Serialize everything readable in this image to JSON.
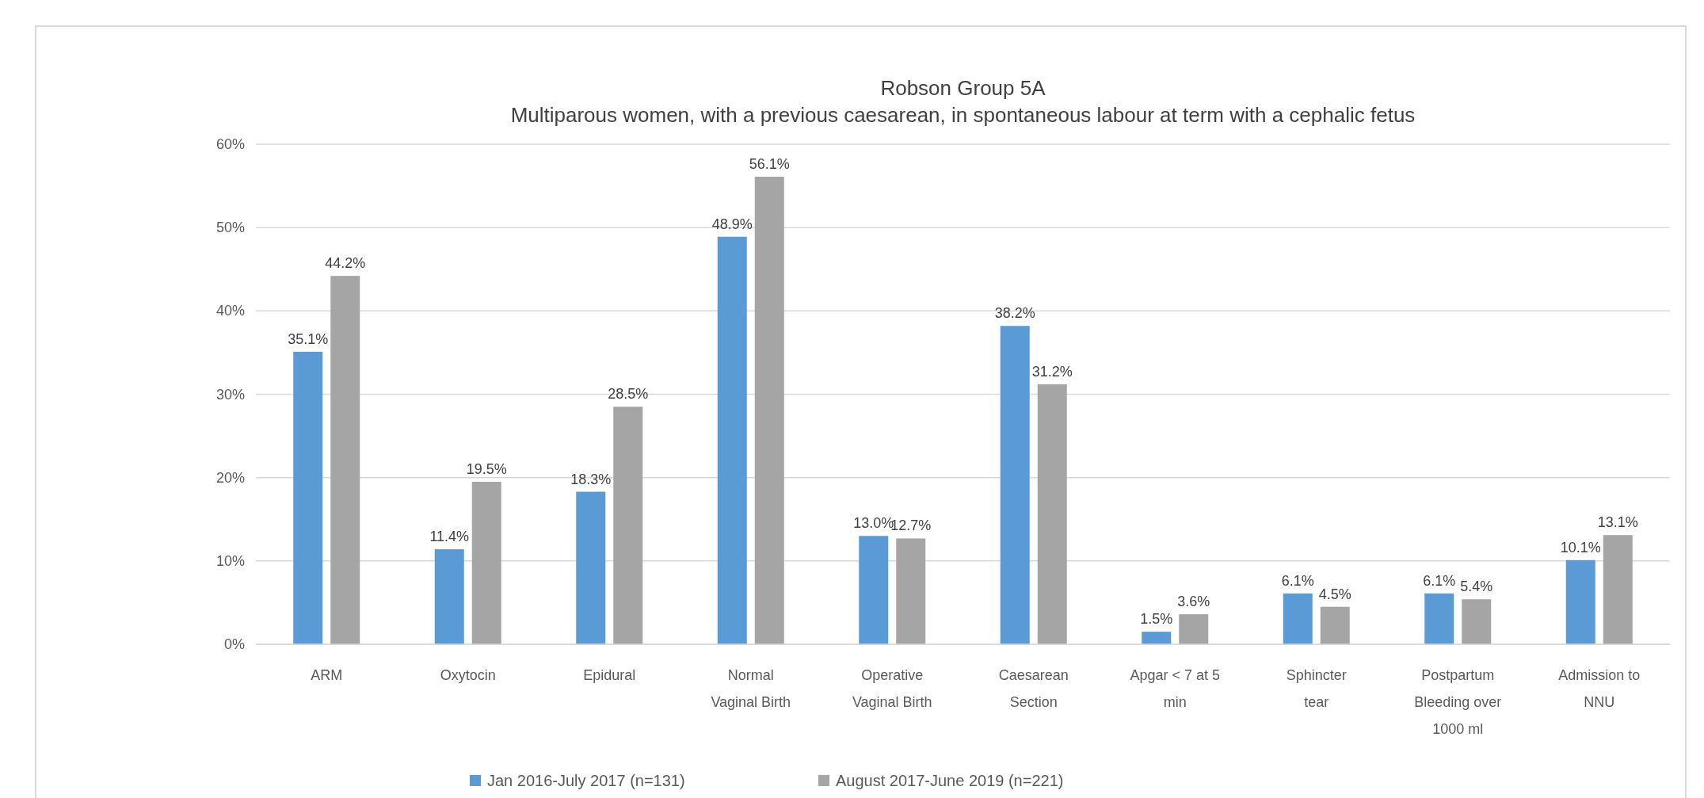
{
  "chart_data": {
    "type": "bar",
    "title": "Robson Group 5A",
    "subtitle": "Multiparous women, with a previous caesarean, in spontaneous labour at term with a cephalic fetus",
    "categories": [
      "ARM",
      "Oxytocin",
      "Epidural",
      "Normal\nVaginal Birth",
      "Operative\nVaginal Birth",
      "Caesarean\nSection",
      "Apgar < 7 at 5\nmin",
      "Sphincter\ntear",
      "Postpartum\nBleeding over\n1000 ml",
      "Admission to\nNNU"
    ],
    "series": [
      {
        "name": "Jan 2016-July 2017 (n=131)",
        "color": "#5b9bd5",
        "values": [
          35.1,
          11.4,
          18.3,
          48.9,
          13.0,
          38.2,
          1.5,
          6.1,
          6.1,
          10.1
        ],
        "value_labels": [
          "35.1%",
          "11.4%",
          "18.3%",
          "48.9%",
          "13.0%",
          "38.2%",
          "1.5%",
          "6.1%",
          "6.1%",
          "10.1%"
        ]
      },
      {
        "name": "August 2017-June 2019 (n=221)",
        "color": "#a5a5a5",
        "values": [
          44.2,
          19.5,
          28.5,
          56.1,
          12.7,
          31.2,
          3.6,
          4.5,
          5.4,
          13.1
        ],
        "value_labels": [
          "44.2%",
          "19.5%",
          "28.5%",
          "56.1%",
          "12.7%",
          "31.2%",
          "3.6%",
          "4.5%",
          "5.4%",
          "13.1%"
        ]
      }
    ],
    "ylim": [
      0,
      60
    ],
    "yticks": [
      {
        "value": 0,
        "label": "0%"
      },
      {
        "value": 10,
        "label": "10%"
      },
      {
        "value": 20,
        "label": "20%"
      },
      {
        "value": 30,
        "label": "30%"
      },
      {
        "value": 40,
        "label": "40%"
      },
      {
        "value": 50,
        "label": "50%"
      },
      {
        "value": 60,
        "label": "60%"
      }
    ],
    "grid": "y",
    "legend": "bottom"
  }
}
